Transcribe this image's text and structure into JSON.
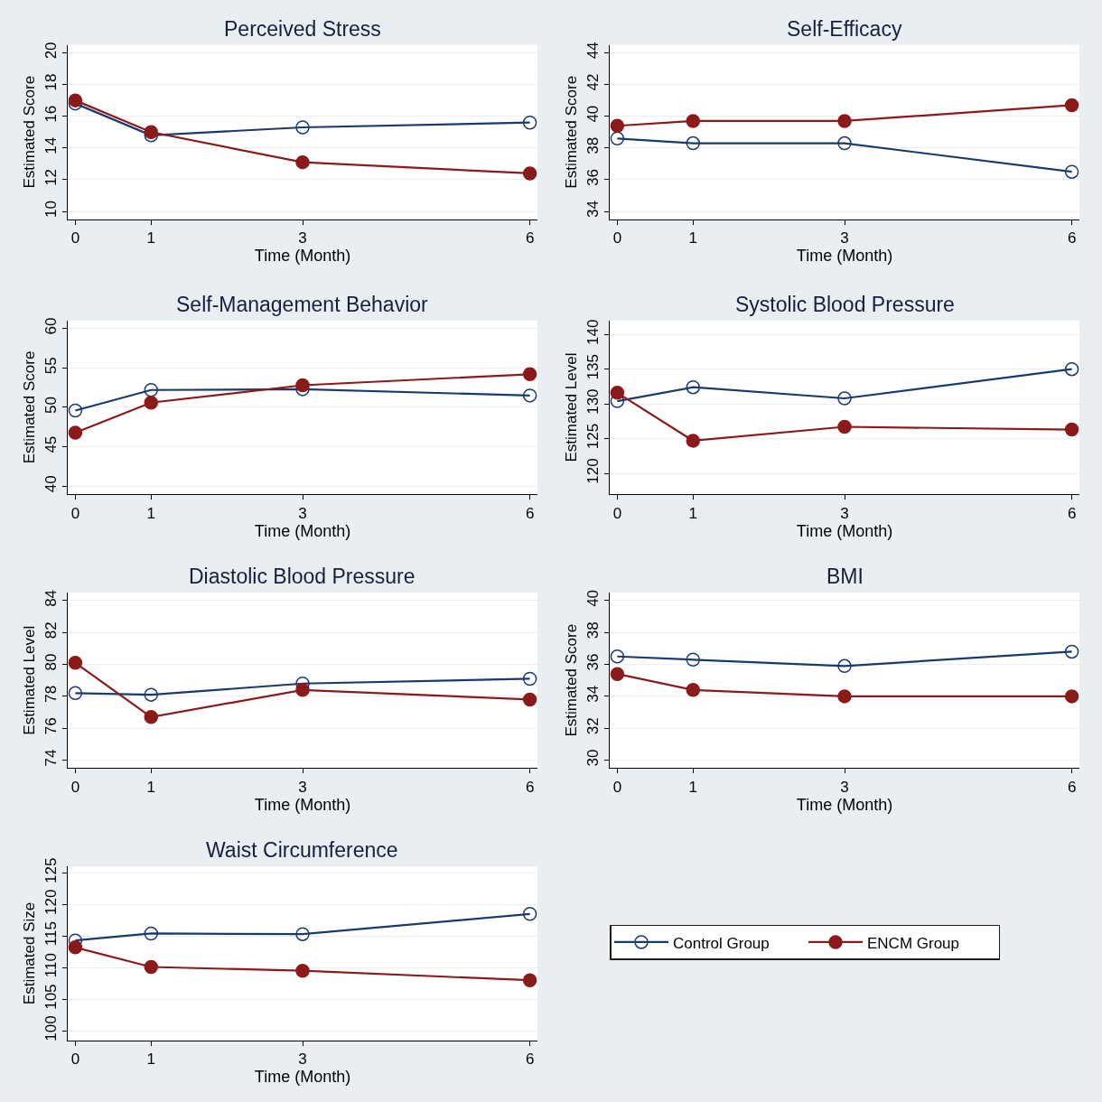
{
  "chart_data": [
    {
      "type": "line",
      "title": "Perceived Stress",
      "xlabel": "Time (Month)",
      "ylabel": "Estimated Score",
      "x": [
        0,
        1,
        3,
        6
      ],
      "xlim": [
        -0.1,
        6.1
      ],
      "xticks": [
        0,
        1,
        3,
        6
      ],
      "ylim": [
        9.5,
        20.5
      ],
      "yticks": [
        10,
        12,
        14,
        16,
        18,
        20
      ],
      "grid": "y",
      "marker": "circle",
      "legend": "bottom right",
      "series": [
        {
          "name": "Control Group",
          "color": "#1a3a6b",
          "values": [
            16.8,
            14.8,
            15.3,
            15.6
          ]
        },
        {
          "name": "ENCM Group",
          "color": "#8b1a1a",
          "values": [
            17.0,
            15.0,
            13.1,
            12.4
          ]
        }
      ]
    },
    {
      "type": "line",
      "title": "Self-Efficacy",
      "xlabel": "Time (Month)",
      "ylabel": "Estimated Score",
      "x": [
        0,
        1,
        3,
        6
      ],
      "xlim": [
        -0.1,
        6.1
      ],
      "xticks": [
        0,
        1,
        3,
        6
      ],
      "ylim": [
        33.5,
        44.5
      ],
      "yticks": [
        34,
        36,
        38,
        40,
        42,
        44
      ],
      "grid": "y",
      "marker": "circle",
      "series": [
        {
          "color": "#1a3a6b",
          "values": [
            38.6,
            38.3,
            38.3,
            36.5
          ]
        },
        {
          "color": "#8b1a1a",
          "values": [
            39.4,
            39.7,
            39.7,
            40.7
          ]
        }
      ]
    },
    {
      "type": "line",
      "title": "Self-Management Behavior",
      "xlabel": "Time (Month)",
      "ylabel": "Estimated Score",
      "x": [
        0,
        1,
        3,
        6
      ],
      "xlim": [
        -0.1,
        6.1
      ],
      "xticks": [
        0,
        1,
        3,
        6
      ],
      "ylim": [
        39,
        61
      ],
      "yticks": [
        40,
        45,
        50,
        55,
        60
      ],
      "grid": "y",
      "marker": "circle",
      "series": [
        {
          "color": "#1a3a6b",
          "values": [
            49.6,
            52.2,
            52.3,
            51.5
          ]
        },
        {
          "color": "#8b1a1a",
          "values": [
            46.8,
            50.6,
            52.8,
            54.2
          ]
        }
      ]
    },
    {
      "type": "line",
      "title": "Systolic Blood Pressure",
      "xlabel": "Time (Month)",
      "ylabel": "Estimated Level",
      "x": [
        0,
        1,
        3,
        6
      ],
      "xlim": [
        -0.1,
        6.1
      ],
      "xticks": [
        0,
        1,
        3,
        6
      ],
      "ylim": [
        117,
        142
      ],
      "yticks": [
        120,
        125,
        130,
        135,
        140
      ],
      "grid": "y",
      "marker": "circle",
      "series": [
        {
          "color": "#1a3a6b",
          "values": [
            130.4,
            132.4,
            130.8,
            135.0
          ]
        },
        {
          "color": "#8b1a1a",
          "values": [
            131.6,
            124.7,
            126.7,
            126.3
          ]
        }
      ]
    },
    {
      "type": "line",
      "title": "Diastolic Blood Pressure",
      "xlabel": "Time (Month)",
      "ylabel": "Estimated Level",
      "x": [
        0,
        1,
        3,
        6
      ],
      "xlim": [
        -0.1,
        6.1
      ],
      "xticks": [
        0,
        1,
        3,
        6
      ],
      "ylim": [
        73.5,
        84.5
      ],
      "yticks": [
        74,
        76,
        78,
        80,
        82,
        84
      ],
      "grid": "y",
      "marker": "circle",
      "series": [
        {
          "color": "#1a3a6b",
          "values": [
            78.2,
            78.1,
            78.8,
            79.1
          ]
        },
        {
          "color": "#8b1a1a",
          "values": [
            80.1,
            76.7,
            78.4,
            77.8
          ]
        }
      ]
    },
    {
      "type": "line",
      "title": "BMI",
      "xlabel": "Time (Month)",
      "ylabel": "Estimated Score",
      "x": [
        0,
        1,
        3,
        6
      ],
      "xlim": [
        -0.1,
        6.1
      ],
      "xticks": [
        0,
        1,
        3,
        6
      ],
      "ylim": [
        29.5,
        40.5
      ],
      "yticks": [
        30,
        32,
        34,
        36,
        38,
        40
      ],
      "grid": "y",
      "marker": "circle",
      "series": [
        {
          "color": "#1a3a6b",
          "values": [
            36.5,
            36.3,
            35.9,
            36.8
          ]
        },
        {
          "color": "#8b1a1a",
          "values": [
            35.4,
            34.4,
            34.0,
            34.0
          ]
        }
      ]
    },
    {
      "type": "line",
      "title": "Waist Circumference",
      "xlabel": "Time (Month)",
      "ylabel": "Estimated Size",
      "x": [
        0,
        1,
        3,
        6
      ],
      "xlim": [
        -0.1,
        6.1
      ],
      "xticks": [
        0,
        1,
        3,
        6
      ],
      "ylim": [
        98.5,
        126
      ],
      "yticks": [
        100,
        105,
        110,
        115,
        120,
        125
      ],
      "grid": "y",
      "marker": "circle",
      "series": [
        {
          "color": "#1a3a6b",
          "values": [
            114.3,
            115.4,
            115.3,
            118.5
          ]
        },
        {
          "color": "#8b1a1a",
          "values": [
            113.2,
            110.1,
            109.5,
            108.0
          ]
        }
      ]
    }
  ]
}
